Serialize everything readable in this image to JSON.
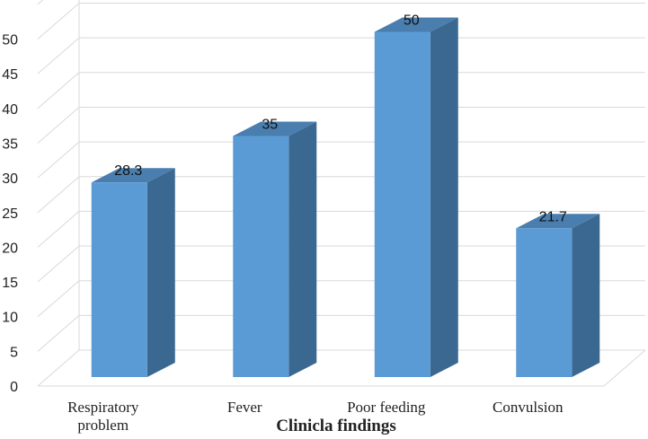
{
  "chart_data": {
    "type": "bar",
    "title": "",
    "xlabel": "Clinicla findings",
    "ylabel": "",
    "categories": [
      [
        "Respiratory",
        "problem"
      ],
      [
        "Fever"
      ],
      [
        "Poor feeding"
      ],
      [
        "Convulsion"
      ]
    ],
    "values": [
      28.3,
      35,
      50,
      21.7
    ],
    "value_labels": [
      "28.3",
      "35",
      "50",
      "21.7"
    ],
    "ylim": [
      0,
      55
    ],
    "yticks": [
      0,
      5,
      10,
      15,
      20,
      25,
      30,
      35,
      40,
      45,
      50
    ],
    "grid": true,
    "style": "3d-column",
    "colors": {
      "front": "#5b9bd5",
      "side": "#3a6890",
      "top": "#4a7eae",
      "grid": "#d9d9d9"
    }
  }
}
